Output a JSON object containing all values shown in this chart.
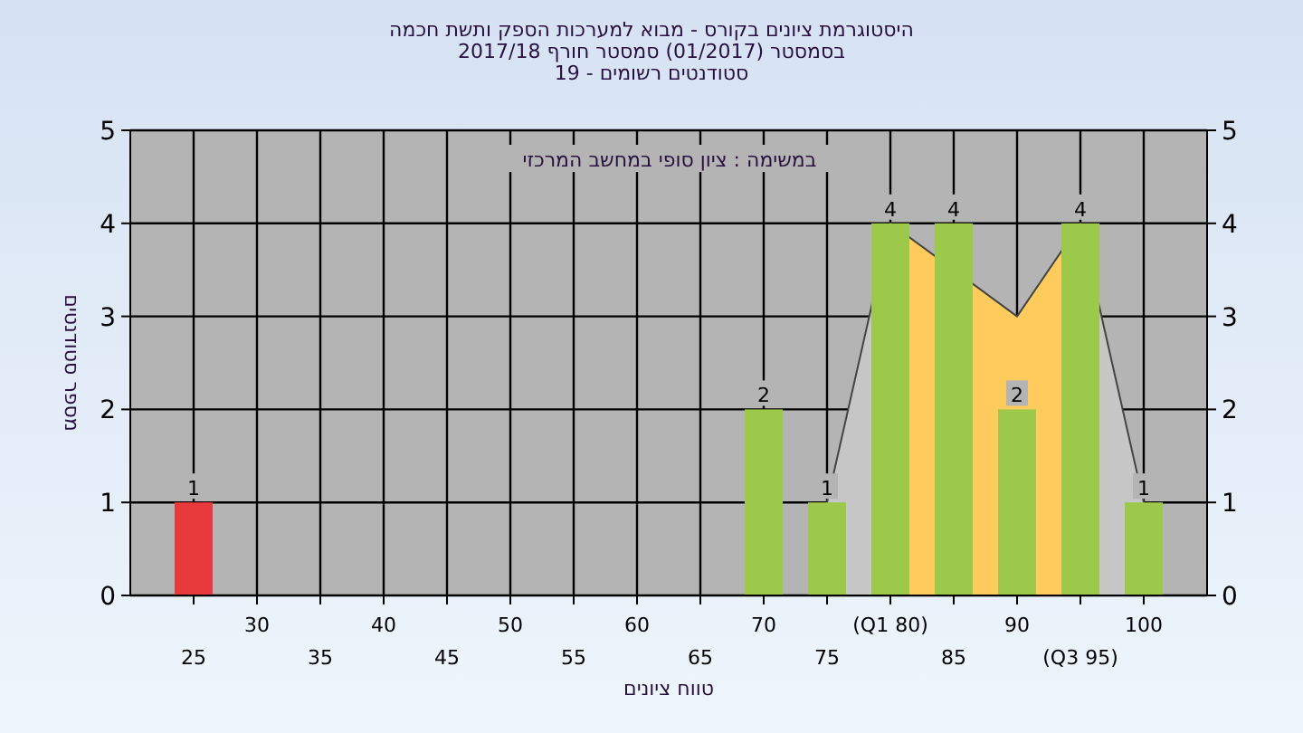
{
  "chart_data": {
    "type": "bar",
    "title": "היסטוגרמת ציונים בקורס - מבוא למערכות הספק ותשת חכמה",
    "subtitle": "בסמסטר (01/2017) סמסטר חורף 2017/18\nסטודנטים רשומים - 19",
    "xlabel": "טווח ציונים",
    "ylabel": "מספר סטודנטים",
    "annotations": [
      "במשימה : ציון סופי במחשב המרכזי"
    ],
    "categories": [
      "25",
      "30",
      "35",
      "40",
      "45",
      "50",
      "55",
      "60",
      "65",
      "70",
      "75",
      "(Q1 80)",
      "85",
      "90",
      "(Q3 95)",
      "100"
    ],
    "series": [
      {
        "type": "area",
        "color": "#c6c6c6",
        "values": [
          null,
          null,
          null,
          null,
          null,
          null,
          null,
          null,
          null,
          null,
          1,
          4,
          null,
          null,
          null,
          null
        ]
      },
      {
        "type": "area",
        "color": "#c6c6c6",
        "values": [
          null,
          null,
          null,
          null,
          null,
          null,
          null,
          null,
          null,
          null,
          null,
          null,
          null,
          null,
          4,
          1
        ]
      },
      {
        "type": "area",
        "color": "#ffcb5c",
        "values": [
          null,
          null,
          null,
          null,
          null,
          null,
          null,
          null,
          null,
          null,
          null,
          4,
          null,
          3,
          4,
          null
        ]
      },
      {
        "colors": [
          "#e8393c",
          "#9cc94a",
          "#9cc94a",
          "#9cc94a",
          "#9cc94a",
          "#9cc94a",
          "#9cc94a",
          "#9cc94a",
          "#9cc94a",
          "#9cc94a",
          "#9cc94a",
          "#9cc94a",
          "#9cc94a",
          "#9cc94a",
          "#9cc94a",
          "#9cc94a"
        ],
        "values": [
          1,
          0,
          0,
          0,
          0,
          0,
          0,
          0,
          0,
          2,
          1,
          4,
          4,
          2,
          4,
          1
        ],
        "value_labels": [
          "1",
          null,
          null,
          null,
          null,
          null,
          null,
          null,
          null,
          "2",
          "1",
          "4",
          "4",
          "2",
          "4",
          "1"
        ]
      }
    ],
    "ylim": [
      0,
      5
    ],
    "yticks": [
      0,
      1,
      2,
      3,
      4,
      5
    ],
    "y2lim": [
      0,
      5
    ],
    "y2ticks": [
      0,
      1,
      2,
      3,
      4,
      5
    ],
    "grid": true
  }
}
